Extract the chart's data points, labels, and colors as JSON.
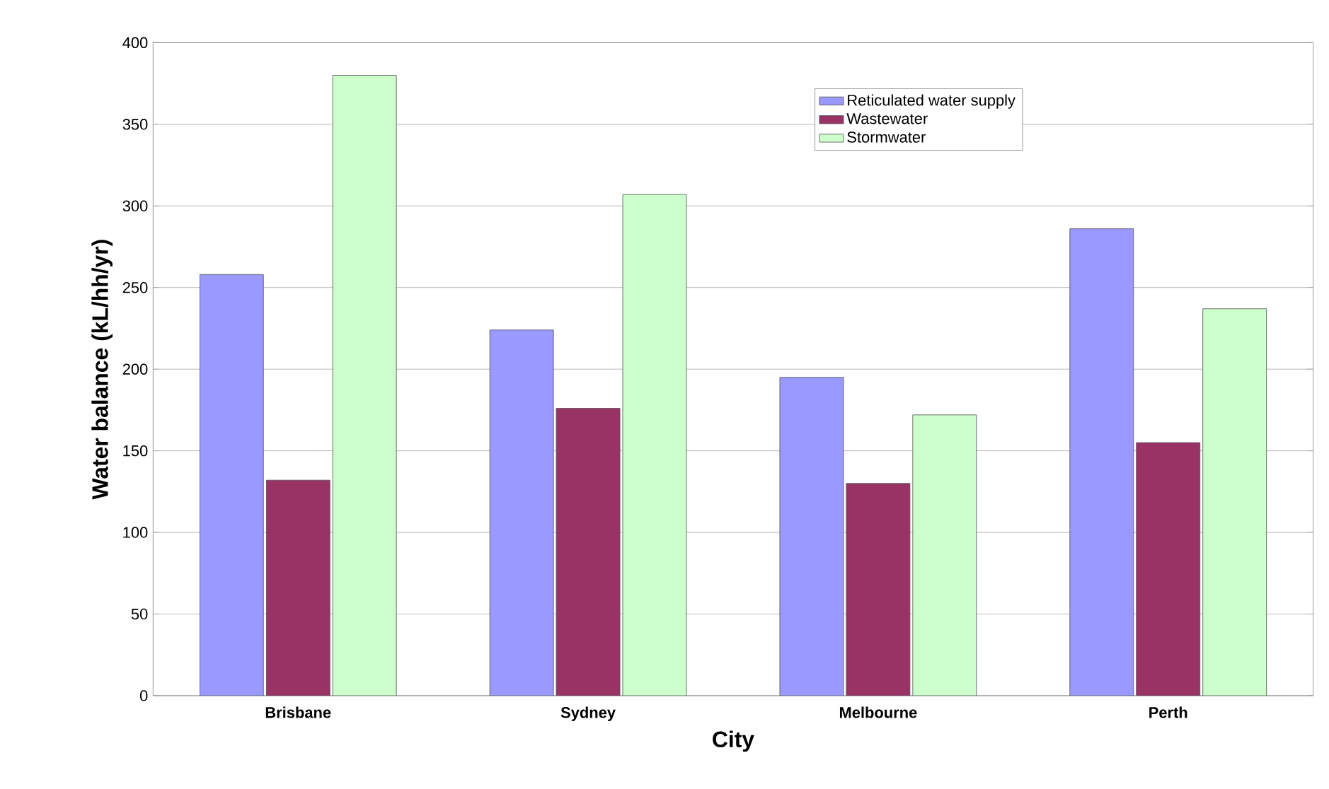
{
  "chart_data": {
    "type": "bar",
    "xlabel": "City",
    "ylabel": "Water balance (kL/hh/yr)",
    "categories": [
      "Brisbane",
      "Sydney",
      "Melbourne",
      "Perth"
    ],
    "series": [
      {
        "name": "Reticulated water supply",
        "color": "#9999ff",
        "values": [
          258,
          224,
          195,
          286
        ]
      },
      {
        "name": "Wastewater",
        "color": "#993366",
        "values": [
          132,
          176,
          130,
          155
        ]
      },
      {
        "name": "Stormwater",
        "color": "#ccffcc",
        "values": [
          380,
          307,
          172,
          237
        ]
      }
    ],
    "ylim": [
      0,
      400
    ],
    "yticks": [
      0,
      50,
      100,
      150,
      200,
      250,
      300,
      350,
      400
    ],
    "grid": "y",
    "legend": "top"
  }
}
